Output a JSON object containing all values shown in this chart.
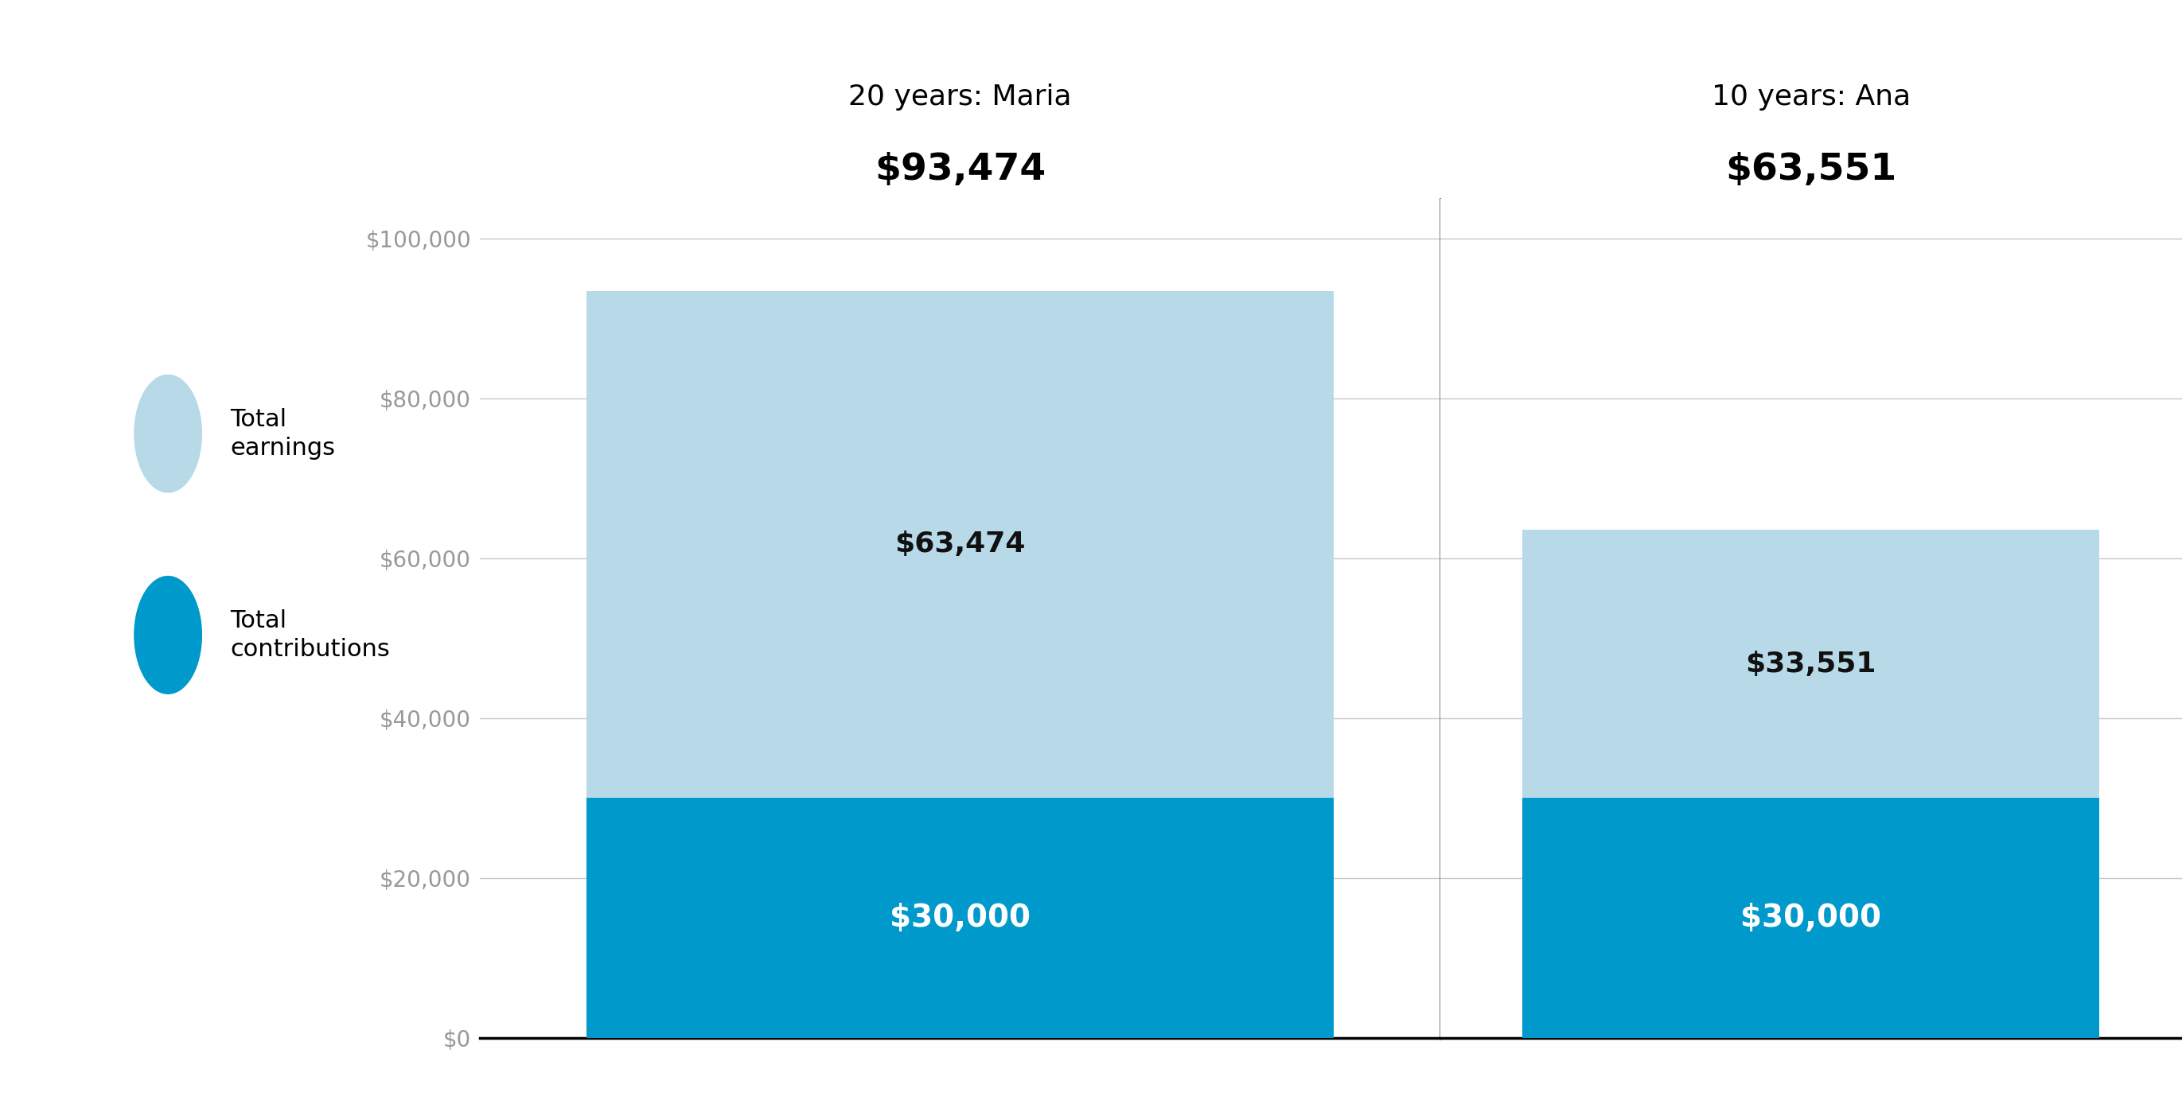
{
  "bars": [
    {
      "title_line1": "20 years: Maria",
      "title_line2": "$93,474",
      "contributions": 30000,
      "earnings": 63474,
      "total": 93474,
      "contrib_label": "$30,000",
      "earnings_label": "$63,474"
    },
    {
      "title_line1": "10 years: Ana",
      "title_line2": "$63,551",
      "contributions": 30000,
      "earnings": 33551,
      "total": 63551,
      "contrib_label": "$30,000",
      "earnings_label": "$33,551"
    }
  ],
  "color_earnings": "#b8d9e8",
  "color_contributions": "#0099cc",
  "ylim": [
    0,
    105000
  ],
  "yticks": [
    0,
    20000,
    40000,
    60000,
    80000,
    100000
  ],
  "background_color": "#ffffff",
  "legend_earnings": "Total\nearnings",
  "legend_contributions": "Total\ncontributions",
  "tick_color": "#999999",
  "grid_color": "#c8c8c8",
  "title_fontsize": 26,
  "title_dollar_fontsize": 34,
  "tick_fontsize": 20,
  "legend_fontsize": 22,
  "annot_contrib_fontsize": 28,
  "annot_earn_fontsize": 26
}
